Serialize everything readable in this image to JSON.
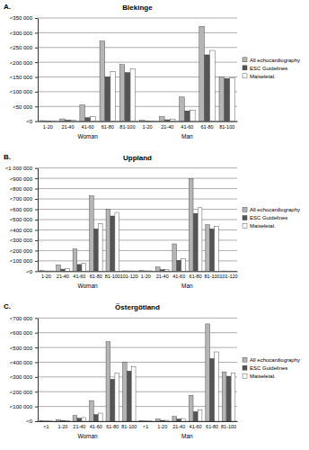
{
  "chart_data": [
    {
      "type": "bar",
      "title": "Blekinge",
      "annotations": [
        "A."
      ],
      "categories": [
        "1-20",
        "21-40",
        "41-60",
        "61-80",
        "81-100",
        "1-20",
        "21-40",
        "41-60",
        "61-80",
        "81-100"
      ],
      "groups": [
        "Woman",
        "Man"
      ],
      "series": [
        {
          "name": "All echocardiography",
          "color": "#b5b5b5",
          "values": [
            2000,
            8000,
            55000,
            272000,
            192000,
            3000,
            15000,
            82000,
            322000,
            150000
          ]
        },
        {
          "name": "ESC Guidelines",
          "color": "#555555",
          "values": [
            1000,
            4000,
            12000,
            150000,
            165000,
            1000,
            5000,
            35000,
            225000,
            145000
          ]
        },
        {
          "name": "Maiseletal.",
          "color": "#ffffff",
          "values": [
            500,
            3000,
            15000,
            168000,
            178000,
            1000,
            6000,
            38000,
            240000,
            148000
          ]
        }
      ],
      "ylim": [
        0,
        350000
      ],
      "yticks": [
        {
          "value": 0,
          "label": "<0"
        },
        {
          "value": 50000,
          "label": "<50 000"
        },
        {
          "value": 100000,
          "label": "<100 000"
        },
        {
          "value": 150000,
          "label": "<150 000"
        },
        {
          "value": 200000,
          "label": "<200 000"
        },
        {
          "value": 250000,
          "label": "<250 000"
        },
        {
          "value": 300000,
          "label": "<300 000"
        },
        {
          "value": 350000,
          "label": "<350 000"
        }
      ],
      "grid": true,
      "legend": "right"
    },
    {
      "type": "bar",
      "title": "Uppland",
      "annotations": [
        "B."
      ],
      "categories": [
        "1-20",
        "21-40",
        "41-60",
        "61-80",
        "81-100",
        "101-120",
        "1-20",
        "21-40",
        "41-60",
        "61-80",
        "81-100",
        "101-120"
      ],
      "groups": [
        "Woman",
        "Man"
      ],
      "series": [
        {
          "name": "All echocardiography",
          "color": "#b5b5b5",
          "values": [
            5000,
            60000,
            215000,
            730000,
            600000,
            3000,
            8000,
            40000,
            265000,
            895000,
            450000,
            2000
          ]
        },
        {
          "name": "ESC Guidelines",
          "color": "#555555",
          "values": [
            2000,
            20000,
            65000,
            410000,
            535000,
            2000,
            3000,
            15000,
            105000,
            560000,
            410000,
            1000
          ]
        },
        {
          "name": "Maiseletal.",
          "color": "#ffffff",
          "values": [
            2000,
            25000,
            75000,
            460000,
            570000,
            2000,
            3000,
            15000,
            120000,
            615000,
            435000,
            1000
          ]
        }
      ],
      "ylim": [
        0,
        1000000
      ],
      "yticks": [
        {
          "value": 0,
          "label": "<0"
        },
        {
          "value": 100000,
          "label": "<100 000"
        },
        {
          "value": 200000,
          "label": "<200 000"
        },
        {
          "value": 300000,
          "label": "<300 000"
        },
        {
          "value": 400000,
          "label": "<400 000"
        },
        {
          "value": 500000,
          "label": "<500 000"
        },
        {
          "value": 600000,
          "label": "<600 000"
        },
        {
          "value": 700000,
          "label": "<700 000"
        },
        {
          "value": 800000,
          "label": "<800 000"
        },
        {
          "value": 900000,
          "label": "<900 000"
        },
        {
          "value": 1000000,
          "label": "<1 000 000"
        }
      ],
      "grid": true,
      "legend": "right"
    },
    {
      "type": "bar",
      "title": "Östergötland",
      "annotations": [
        "C."
      ],
      "categories": [
        "<1",
        "1-20",
        "21-40",
        "41-60",
        "61-80",
        "81-100",
        "<1",
        "1-20",
        "21-40",
        "41-60",
        "61-80",
        "81-100"
      ],
      "groups": [
        "Woman",
        "Man"
      ],
      "series": [
        {
          "name": "All echocardiography",
          "color": "#b5b5b5",
          "values": [
            2000,
            10000,
            38000,
            140000,
            540000,
            400000,
            3000,
            15000,
            32000,
            175000,
            660000,
            335000
          ]
        },
        {
          "name": "ESC Guidelines",
          "color": "#555555",
          "values": [
            1000,
            4000,
            20000,
            45000,
            285000,
            340000,
            1000,
            6000,
            15000,
            65000,
            425000,
            305000
          ]
        },
        {
          "name": "Maiseletal.",
          "color": "#ffffff",
          "values": [
            1000,
            5000,
            25000,
            55000,
            325000,
            370000,
            1000,
            6000,
            18000,
            75000,
            470000,
            325000
          ]
        }
      ],
      "ylim": [
        0,
        700000
      ],
      "yticks": [
        {
          "value": 0,
          "label": "<0"
        },
        {
          "value": 100000,
          "label": "<100 000"
        },
        {
          "value": 200000,
          "label": "<200 000"
        },
        {
          "value": 300000,
          "label": "<300 000"
        },
        {
          "value": 400000,
          "label": "<400 000"
        },
        {
          "value": 500000,
          "label": "<500 000"
        },
        {
          "value": 600000,
          "label": "<600 000"
        },
        {
          "value": 700000,
          "label": "<700 000"
        }
      ],
      "grid": true,
      "legend": "right"
    }
  ]
}
